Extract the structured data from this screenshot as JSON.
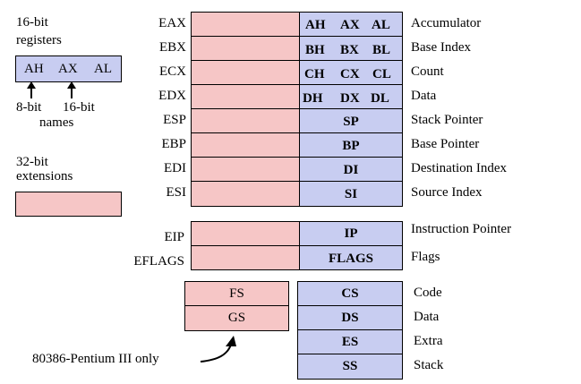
{
  "legend": {
    "sixteen_bit_line1": "16-bit",
    "sixteen_bit_line2": "registers",
    "sample_ah": "AH",
    "sample_ax": "AX",
    "sample_al": "AL",
    "eight_bit": "8-bit",
    "sixteen_bit_names": "16-bit",
    "names": "names",
    "ext_line1": "32-bit",
    "ext_line2": "extensions",
    "only_note": "80386-Pentium III only"
  },
  "general_registers": [
    {
      "name": "EAX",
      "parts": [
        "AH",
        "AX",
        "AL"
      ],
      "desc": "Accumulator"
    },
    {
      "name": "EBX",
      "parts": [
        "BH",
        "BX",
        "BL"
      ],
      "desc": "Base Index"
    },
    {
      "name": "ECX",
      "parts": [
        "CH",
        "CX",
        "CL"
      ],
      "desc": "Count"
    },
    {
      "name": "EDX",
      "parts": [
        "DH",
        "DX",
        "DL"
      ],
      "desc": "Data"
    },
    {
      "name": "ESP",
      "parts": [
        "SP"
      ],
      "desc": "Stack Pointer"
    },
    {
      "name": "EBP",
      "parts": [
        "BP"
      ],
      "desc": "Base Pointer"
    },
    {
      "name": "EDI",
      "parts": [
        "DI"
      ],
      "desc": "Destination Index"
    },
    {
      "name": "ESI",
      "parts": [
        "SI"
      ],
      "desc": "Source Index"
    }
  ],
  "control_registers": [
    {
      "name": "EIP",
      "part": "IP",
      "desc": "Instruction Pointer"
    },
    {
      "name": "EFLAGS",
      "part": "FLAGS",
      "desc": "Flags"
    }
  ],
  "extra_segments": [
    "FS",
    "GS"
  ],
  "segment_registers": [
    {
      "name": "CS",
      "desc": "Code"
    },
    {
      "name": "DS",
      "desc": "Data"
    },
    {
      "name": "ES",
      "desc": "Extra"
    },
    {
      "name": "SS",
      "desc": "Stack"
    }
  ],
  "colors": {
    "extension": "#f6c6c6",
    "sixteen_bit": "#c8cdf1"
  }
}
